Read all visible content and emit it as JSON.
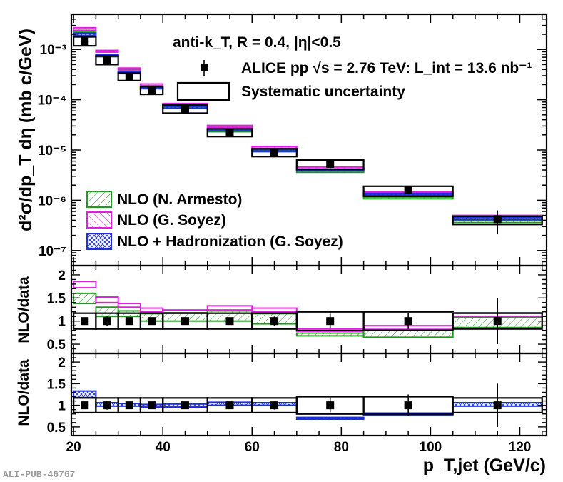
{
  "chart_data": [
    {
      "type": "scatter",
      "panel": "cross-section",
      "title": "",
      "ylabel": "d²σ/dp_T dη (mb c/GeV)",
      "yscale": "log",
      "ylim": [
        5e-08,
        0.005
      ],
      "y_tick_labels": [
        "10⁻³",
        "10⁻⁴",
        "10⁻⁵",
        "10⁻⁶",
        "10⁻⁷"
      ],
      "annotations": [
        "anti-k_T, R = 0.4, |η|<0.5"
      ],
      "legend": [
        {
          "label": "ALICE pp √s = 2.76 TeV: L_int = 13.6 nb⁻¹",
          "marker": "square"
        },
        {
          "label": "Systematic uncertainty",
          "marker": "box"
        },
        {
          "label": "NLO (N. Armesto)",
          "color": "#1e9a1e"
        },
        {
          "label": "NLO (G. Soyez)",
          "color": "#e020e0"
        },
        {
          "label": "NLO + Hadronization (G. Soyez)",
          "color": "#1c2ee0"
        }
      ],
      "bins": [
        {
          "lo": 20,
          "hi": 25,
          "data": 0.00145,
          "stat": 8e-05,
          "sys_lo": 0.00118,
          "sys_hi": 0.00178,
          "armesto": [
            0.0019,
            0.0022
          ],
          "soyez": [
            0.0024,
            0.0027
          ],
          "hadr": [
            0.0019,
            0.0021
          ]
        },
        {
          "lo": 25,
          "hi": 30,
          "data": 0.00062,
          "stat": 6e-05,
          "sys_lo": 0.0005,
          "sys_hi": 0.00074,
          "armesto": [
            0.00072,
            0.00078
          ],
          "soyez": [
            0.00086,
            0.00092
          ],
          "hadr": [
            0.00072,
            0.00078
          ]
        },
        {
          "lo": 30,
          "hi": 35,
          "data": 0.00029,
          "stat": 2e-05,
          "sys_lo": 0.00024,
          "sys_hi": 0.00034,
          "armesto": [
            0.00034,
            0.00037
          ],
          "soyez": [
            0.000385,
            0.00041
          ],
          "hadr": [
            0.00033,
            0.00036
          ]
        },
        {
          "lo": 35,
          "hi": 40,
          "data": 0.000155,
          "stat": 1e-05,
          "sys_lo": 0.000128,
          "sys_hi": 0.000182,
          "armesto": [
            0.000166,
            0.000178
          ],
          "soyez": [
            0.000186,
            0.000198
          ],
          "hadr": [
            0.00016,
            0.000172
          ]
        },
        {
          "lo": 40,
          "hi": 50,
          "data": 6.6e-05,
          "stat": 4e-06,
          "sys_lo": 5.4e-05,
          "sys_hi": 7.9e-05,
          "armesto": [
            6.6e-05,
            7.1e-05
          ],
          "soyez": [
            7.6e-05,
            8.1e-05
          ],
          "hadr": [
            6.6e-05,
            7e-05
          ]
        },
        {
          "lo": 50,
          "hi": 60,
          "data": 2.25e-05,
          "stat": 2e-06,
          "sys_lo": 1.85e-05,
          "sys_hi": 2.65e-05,
          "armesto": [
            2.26e-05,
            2.4e-05
          ],
          "soyez": [
            2.8e-05,
            2.96e-05
          ],
          "hadr": [
            2.35e-05,
            2.5e-05
          ]
        },
        {
          "lo": 60,
          "hi": 70,
          "data": 9e-06,
          "stat": 9e-07,
          "sys_lo": 7.4e-06,
          "sys_hi": 1.06e-05,
          "armesto": [
            9e-06,
            9.6e-06
          ],
          "soyez": [
            1.06e-05,
            1.13e-05
          ],
          "hadr": [
            9.2e-06,
            9.8e-06
          ]
        },
        {
          "lo": 70,
          "hi": 85,
          "data": 5.3e-06,
          "stat": 7e-07,
          "sys_lo": 4.1e-06,
          "sys_hi": 6.3e-06,
          "armesto": [
            3.6e-06,
            3.9e-06
          ],
          "soyez": [
            4.1e-06,
            4.4e-06
          ],
          "hadr": [
            3.7e-06,
            4e-06
          ]
        },
        {
          "lo": 85,
          "hi": 105,
          "data": 1.6e-06,
          "stat": 2.5e-07,
          "sys_lo": 1.2e-06,
          "sys_hi": 1.9e-06,
          "armesto": [
            1.07e-06,
            1.16e-06
          ],
          "soyez": [
            1.3e-06,
            1.4e-06
          ],
          "hadr": [
            1.23e-06,
            1.32e-06
          ]
        },
        {
          "lo": 105,
          "hi": 125,
          "data": 4.2e-07,
          "stat": 2.1e-07,
          "sys_lo": 3.3e-07,
          "sys_hi": 4.8e-07,
          "armesto": [
            3.6e-07,
            4e-07
          ],
          "soyez": [
            4.6e-07,
            5e-07
          ],
          "hadr": [
            4.1e-07,
            4.5e-07
          ]
        }
      ]
    },
    {
      "type": "scatter",
      "panel": "ratio-top",
      "ylabel": "NLO/data",
      "ylim": [
        0.3,
        2.2
      ],
      "y_ticks": [
        0.5,
        1,
        1.5,
        2
      ],
      "y_tick_labels": [
        "0.5",
        "1",
        "1.5",
        "2"
      ],
      "bins": [
        {
          "lo": 20,
          "hi": 25,
          "data": 1.0,
          "stat": 0.06,
          "sys": 0.17,
          "armesto": [
            1.38,
            1.6
          ],
          "soyez": [
            1.72,
            1.86
          ]
        },
        {
          "lo": 25,
          "hi": 30,
          "data": 1.0,
          "stat": 0.1,
          "sys": 0.17,
          "armesto": [
            1.1,
            1.3
          ],
          "soyez": [
            1.4,
            1.52
          ]
        },
        {
          "lo": 30,
          "hi": 35,
          "data": 1.0,
          "stat": 0.06,
          "sys": 0.17,
          "armesto": [
            1.1,
            1.22
          ],
          "soyez": [
            1.3,
            1.38
          ]
        },
        {
          "lo": 35,
          "hi": 40,
          "data": 1.0,
          "stat": 0.05,
          "sys": 0.17,
          "armesto": [
            1.0,
            1.16
          ],
          "soyez": [
            1.2,
            1.28
          ]
        },
        {
          "lo": 40,
          "hi": 50,
          "data": 1.0,
          "stat": 0.05,
          "sys": 0.17,
          "armesto": [
            1.0,
            1.18
          ],
          "soyez": [
            1.17,
            1.24
          ]
        },
        {
          "lo": 50,
          "hi": 60,
          "data": 1.0,
          "stat": 0.06,
          "sys": 0.17,
          "armesto": [
            1.0,
            1.22
          ],
          "soyez": [
            1.24,
            1.33
          ]
        },
        {
          "lo": 60,
          "hi": 70,
          "data": 1.0,
          "stat": 0.1,
          "sys": 0.17,
          "armesto": [
            0.94,
            1.16
          ],
          "soyez": [
            1.2,
            1.28
          ]
        },
        {
          "lo": 70,
          "hi": 85,
          "data": 1.0,
          "stat": 0.16,
          "sys": 0.2,
          "armesto": [
            0.68,
            0.74
          ],
          "soyez": [
            0.78,
            0.84
          ]
        },
        {
          "lo": 85,
          "hi": 105,
          "data": 1.0,
          "stat": 0.17,
          "sys": 0.2,
          "armesto": [
            0.65,
            0.8
          ],
          "soyez": [
            0.82,
            0.9
          ]
        },
        {
          "lo": 105,
          "hi": 125,
          "data": 1.0,
          "stat": 0.5,
          "sys": 0.17,
          "armesto": [
            0.86,
            1.08
          ],
          "soyez": [
            1.1,
            1.18
          ]
        }
      ]
    },
    {
      "type": "scatter",
      "panel": "ratio-bottom",
      "ylabel": "NLO/data",
      "xlabel": "p_T,jet (GeV/c)",
      "xlim": [
        19.5,
        126
      ],
      "x_ticks": [
        20,
        40,
        60,
        80,
        100,
        120
      ],
      "x_tick_labels": [
        "20",
        "40",
        "60",
        "80",
        "100",
        "120"
      ],
      "ylim": [
        0.3,
        2.2
      ],
      "y_ticks": [
        0.5,
        1,
        1.5,
        2
      ],
      "y_tick_labels": [
        "0.5",
        "1",
        "1.5",
        "2"
      ],
      "bins": [
        {
          "lo": 20,
          "hi": 25,
          "data": 1.0,
          "stat": 0.06,
          "sys": 0.17,
          "hadr": [
            1.18,
            1.33
          ]
        },
        {
          "lo": 25,
          "hi": 30,
          "data": 1.0,
          "stat": 0.1,
          "sys": 0.17,
          "hadr": [
            0.98,
            1.06
          ]
        },
        {
          "lo": 30,
          "hi": 35,
          "data": 1.0,
          "stat": 0.06,
          "sys": 0.17,
          "hadr": [
            0.98,
            1.04
          ]
        },
        {
          "lo": 35,
          "hi": 40,
          "data": 1.0,
          "stat": 0.05,
          "sys": 0.17,
          "hadr": [
            0.96,
            1.02
          ]
        },
        {
          "lo": 40,
          "hi": 50,
          "data": 1.0,
          "stat": 0.05,
          "sys": 0.17,
          "hadr": [
            0.96,
            1.03
          ]
        },
        {
          "lo": 50,
          "hi": 60,
          "data": 1.0,
          "stat": 0.06,
          "sys": 0.17,
          "hadr": [
            1.0,
            1.07
          ]
        },
        {
          "lo": 60,
          "hi": 70,
          "data": 1.0,
          "stat": 0.1,
          "sys": 0.17,
          "hadr": [
            1.0,
            1.06
          ]
        },
        {
          "lo": 70,
          "hi": 85,
          "data": 1.0,
          "stat": 0.16,
          "sys": 0.2,
          "hadr": [
            0.68,
            0.72
          ]
        },
        {
          "lo": 85,
          "hi": 105,
          "data": 1.0,
          "stat": 0.25,
          "sys": 0.2,
          "hadr": [
            0.77,
            0.82
          ]
        },
        {
          "lo": 105,
          "hi": 125,
          "data": 1.0,
          "stat": 0.5,
          "sys": 0.17,
          "hadr": [
            0.98,
            1.06
          ]
        }
      ]
    }
  ],
  "footer": "ALI-PUB-46767"
}
